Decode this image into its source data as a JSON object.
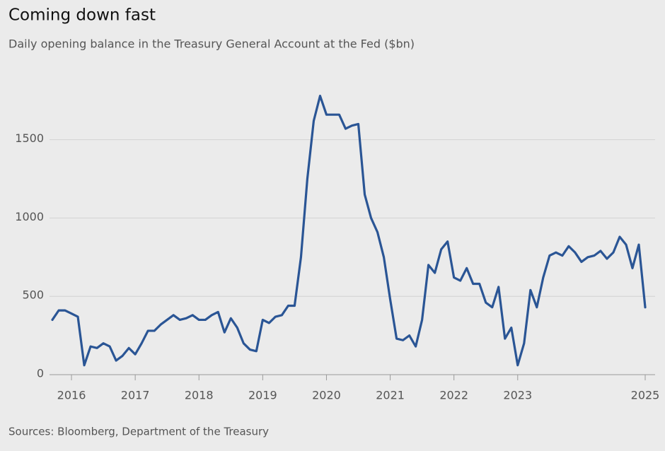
{
  "chart_data": {
    "type": "line",
    "title": "Coming down fast",
    "subtitle": "Daily opening balance in the Treasury General Account at the Fed ($bn)",
    "source": "Sources: Bloomberg, Department of the Treasury",
    "x": [
      2015.7,
      2015.8,
      2015.9,
      2016.0,
      2016.1,
      2016.2,
      2016.3,
      2016.4,
      2016.5,
      2016.6,
      2016.7,
      2016.8,
      2016.9,
      2017.0,
      2017.1,
      2017.2,
      2017.3,
      2017.4,
      2017.5,
      2017.6,
      2017.7,
      2017.8,
      2017.9,
      2018.0,
      2018.1,
      2018.2,
      2018.3,
      2018.4,
      2018.5,
      2018.6,
      2018.7,
      2018.8,
      2018.9,
      2019.0,
      2019.1,
      2019.2,
      2019.3,
      2019.4,
      2019.5,
      2019.6,
      2019.7,
      2019.8,
      2019.9,
      2020.0,
      2020.1,
      2020.2,
      2020.3,
      2020.4,
      2020.5,
      2020.6,
      2020.7,
      2020.8,
      2020.9,
      2021.0,
      2021.1,
      2021.2,
      2021.3,
      2021.4,
      2021.5,
      2021.6,
      2021.7,
      2021.8,
      2021.9,
      2022.0,
      2022.1,
      2022.2,
      2022.3,
      2022.4,
      2022.5,
      2022.6,
      2022.7,
      2022.8,
      2022.9,
      2023.0,
      2023.1,
      2023.2,
      2023.3,
      2023.4,
      2023.5,
      2023.6,
      2023.7,
      2023.8,
      2023.9,
      2024.0,
      2024.1,
      2024.2,
      2024.3,
      2024.4,
      2024.5,
      2024.6,
      2024.7,
      2024.8,
      2024.9,
      2025.0
    ],
    "series": [
      {
        "name": "Treasury General Account balance",
        "color": "#2a5595",
        "values": [
          350,
          410,
          410,
          390,
          370,
          60,
          180,
          170,
          200,
          180,
          90,
          120,
          170,
          130,
          200,
          280,
          280,
          320,
          350,
          380,
          350,
          360,
          380,
          350,
          350,
          380,
          400,
          270,
          360,
          300,
          200,
          160,
          150,
          350,
          330,
          370,
          380,
          440,
          440,
          750,
          1250,
          1620,
          1780,
          1660,
          1660,
          1660,
          1570,
          1590,
          1600,
          1150,
          1000,
          910,
          750,
          480,
          230,
          220,
          250,
          180,
          350,
          700,
          650,
          800,
          850,
          620,
          600,
          680,
          580,
          580,
          460,
          430,
          560,
          230,
          300,
          60,
          200,
          540,
          430,
          620,
          760,
          780,
          760,
          820,
          780,
          720,
          750,
          760,
          790,
          740,
          780,
          880,
          830,
          680,
          830,
          430
        ]
      }
    ],
    "xlim": [
      2015.7,
      2025.0
    ],
    "xticks": [
      2016,
      2017,
      2018,
      2019,
      2020,
      2021,
      2022,
      2023,
      2025
    ],
    "ylim": [
      0,
      1900
    ],
    "yticks": [
      0,
      500,
      1000,
      1500
    ],
    "grid": true
  }
}
